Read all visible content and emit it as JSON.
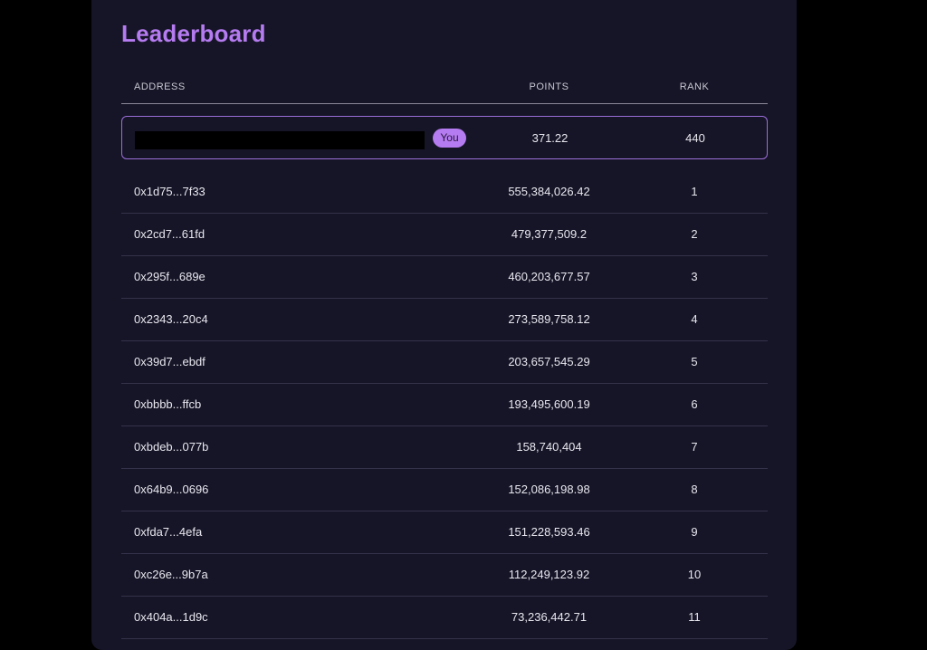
{
  "page": {
    "title": "Leaderboard"
  },
  "table": {
    "headers": {
      "address": "ADDRESS",
      "points": "POINTS",
      "rank": "RANK"
    },
    "current_user": {
      "badge": "You",
      "points": "371.22",
      "rank": "440"
    },
    "rows": [
      {
        "address": "0x1d75...7f33",
        "points": "555,384,026.42",
        "rank": "1"
      },
      {
        "address": "0x2cd7...61fd",
        "points": "479,377,509.2",
        "rank": "2"
      },
      {
        "address": "0x295f...689e",
        "points": "460,203,677.57",
        "rank": "3"
      },
      {
        "address": "0x2343...20c4",
        "points": "273,589,758.12",
        "rank": "4"
      },
      {
        "address": "0x39d7...ebdf",
        "points": "203,657,545.29",
        "rank": "5"
      },
      {
        "address": "0xbbbb...ffcb",
        "points": "193,495,600.19",
        "rank": "6"
      },
      {
        "address": "0xbdeb...077b",
        "points": "158,740,404",
        "rank": "7"
      },
      {
        "address": "0x64b9...0696",
        "points": "152,086,198.98",
        "rank": "8"
      },
      {
        "address": "0xfda7...4efa",
        "points": "151,228,593.46",
        "rank": "9"
      },
      {
        "address": "0xc26e...9b7a",
        "points": "112,249,123.92",
        "rank": "10"
      },
      {
        "address": "0x404a...1d9c",
        "points": "73,236,442.71",
        "rank": "11"
      }
    ]
  },
  "colors": {
    "accent": "#b57bf0",
    "panel": "#161527",
    "background": "#000000"
  }
}
